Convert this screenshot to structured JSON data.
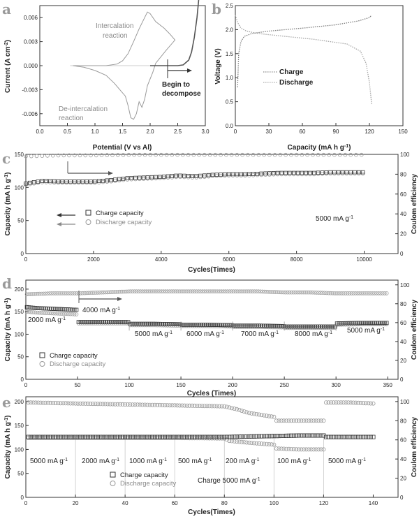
{
  "chart_data": [
    {
      "panel": "a",
      "type": "line",
      "xlabel": "Potential (V vs Al)",
      "ylabel": "Current (A cm-2)",
      "xlim": [
        0.0,
        3.0
      ],
      "ylim": [
        -0.0075,
        0.0075
      ],
      "xticks": [
        "0.0",
        "0.5",
        "1.0",
        "1.5",
        "2.0",
        "2.5",
        "3.0"
      ],
      "xtick_values": [
        0.0,
        0.5,
        1.0,
        1.5,
        2.0,
        2.5,
        3.0
      ],
      "yticks": [
        "0.006",
        "0.003",
        "0.000",
        "-0.003",
        "-0.006"
      ],
      "ytick_values": [
        0.006,
        0.003,
        0.0,
        -0.003,
        -0.006
      ],
      "annotations": [
        "Intercalation",
        "reaction",
        "De-intercalation",
        "reaction",
        "Begin to",
        "decompose"
      ],
      "series": [
        {
          "color": "#9a9a9a",
          "x": [
            0.6,
            0.9,
            1.2,
            1.4,
            1.5,
            1.6,
            1.7,
            1.8,
            1.9,
            1.95,
            2.0,
            2.1,
            2.25,
            2.35,
            2.45,
            2.3,
            2.1,
            2.05,
            1.95,
            1.9,
            1.85,
            1.8,
            1.75,
            1.7,
            1.65,
            1.6,
            1.55,
            1.45,
            1.35,
            1.2,
            1.0,
            0.8,
            0.6
          ],
          "y": [
            0.0,
            0.0,
            0.0,
            0.0002,
            0.0006,
            0.0015,
            0.003,
            0.0046,
            0.006,
            0.0067,
            0.0065,
            0.0055,
            0.0047,
            0.004,
            0.0032,
            0.002,
            0.0003,
            -0.0008,
            -0.0025,
            -0.0042,
            -0.0052,
            -0.0045,
            -0.006,
            -0.0067,
            -0.0065,
            -0.005,
            -0.0038,
            -0.003,
            -0.0022,
            -0.0012,
            -0.0006,
            -0.0002,
            0.0
          ]
        },
        {
          "color": "#555555",
          "x": [
            2.0,
            2.3,
            2.5,
            2.6,
            2.7,
            2.75,
            2.8,
            2.85,
            2.88
          ],
          "y": [
            0.0,
            0.0,
            0.0,
            0.0001,
            0.0007,
            0.0017,
            0.0035,
            0.006,
            0.0082
          ]
        }
      ]
    },
    {
      "panel": "b",
      "type": "line",
      "xlabel": "Capacity (mA h g-1)",
      "ylabel": "Voltage (V)",
      "xlim": [
        0,
        150
      ],
      "ylim": [
        0.0,
        2.5
      ],
      "xticks": [
        "0",
        "30",
        "60",
        "90",
        "120",
        "150"
      ],
      "xtick_values": [
        0,
        30,
        60,
        90,
        120,
        150
      ],
      "yticks": [
        "0.0",
        "0.5",
        "1.0",
        "1.5",
        "2.0",
        "2.5"
      ],
      "ytick_values": [
        0.0,
        0.5,
        1.0,
        1.5,
        2.0,
        2.5
      ],
      "legend": [
        "Charge",
        "Discharge"
      ],
      "series": [
        {
          "name": "Charge",
          "x": [
            2,
            3,
            5,
            8,
            15,
            30,
            60,
            90,
            110,
            120,
            122
          ],
          "y": [
            0.8,
            1.5,
            1.75,
            1.86,
            1.92,
            1.97,
            2.03,
            2.1,
            2.18,
            2.25,
            2.3
          ]
        },
        {
          "name": "Discharge",
          "x": [
            0,
            2,
            5,
            10,
            20,
            40,
            70,
            100,
            112,
            117,
            120,
            122
          ],
          "y": [
            2.3,
            2.15,
            2.03,
            1.97,
            1.92,
            1.87,
            1.8,
            1.7,
            1.55,
            1.3,
            0.9,
            0.45
          ]
        }
      ]
    },
    {
      "panel": "c",
      "type": "scatter",
      "xlabel": "Cycles(Times)",
      "ylabel": "Capacity (mA h g-1)",
      "y2label": "Coulom efficiency",
      "xlim": [
        0,
        11000
      ],
      "ylim": [
        0,
        150
      ],
      "y2lim": [
        0,
        100
      ],
      "xticks": [
        "0",
        "2000",
        "4000",
        "6000",
        "8000",
        "10000"
      ],
      "xtick_values": [
        0,
        2000,
        4000,
        6000,
        8000,
        10000
      ],
      "yticks": [
        "0",
        "50",
        "100",
        "150"
      ],
      "ytick_values": [
        0,
        50,
        100,
        150
      ],
      "y2ticks": [
        "0",
        "20",
        "40",
        "60",
        "80",
        "100"
      ],
      "y2tick_values": [
        0,
        20,
        40,
        60,
        80,
        100
      ],
      "legend": [
        "Charge capacity",
        "Discharge capacity"
      ],
      "annotations": [
        "5000 mA g-1"
      ],
      "series": [
        {
          "name": "Charge capacity",
          "x": [
            0,
            500,
            1000,
            1500,
            2000,
            2500,
            3000,
            3500,
            4000,
            4500,
            5000,
            5500,
            6000,
            6500,
            7000,
            7500,
            8000,
            8500,
            9000,
            9500,
            10000
          ],
          "y": [
            106,
            110,
            109,
            109,
            109,
            111,
            114,
            115,
            116,
            118,
            117,
            119,
            120,
            120,
            121,
            122,
            122,
            122,
            123,
            123,
            123
          ]
        },
        {
          "name": "Discharge capacity",
          "x": [
            0,
            500,
            1000,
            1500,
            2000,
            2500,
            3000,
            3500,
            4000,
            4500,
            5000,
            5500,
            6000,
            6500,
            7000,
            7500,
            8000,
            8500,
            9000,
            9500,
            10000
          ],
          "y": [
            104,
            108,
            107,
            107,
            107,
            109,
            112,
            113,
            114,
            116,
            115,
            117,
            118,
            118,
            119,
            120,
            120,
            120,
            121,
            121,
            121
          ]
        },
        {
          "name": "Coulom efficiency",
          "x": [
            0,
            1000,
            2000,
            3000,
            4000,
            5000,
            6000,
            7000,
            8000,
            9000,
            10000
          ],
          "y2": [
            98,
            99,
            99,
            99.5,
            99.5,
            99.5,
            99.5,
            99.5,
            99.5,
            99.5,
            99.5
          ]
        }
      ]
    },
    {
      "panel": "d",
      "type": "scatter",
      "xlabel": "Cycles (Times)",
      "ylabel": "Capacity (mA h g-1)",
      "y2label": "Coulom efficiency",
      "xlim": [
        0,
        360
      ],
      "ylim": [
        0,
        220
      ],
      "y2lim": [
        0,
        105
      ],
      "xticks": [
        "0",
        "50",
        "100",
        "150",
        "200",
        "250",
        "300",
        "350"
      ],
      "xtick_values": [
        0,
        50,
        100,
        150,
        200,
        250,
        300,
        350
      ],
      "yticks": [
        "0",
        "50",
        "100",
        "150",
        "200"
      ],
      "ytick_values": [
        0,
        50,
        100,
        150,
        200
      ],
      "y2ticks": [
        "0",
        "20",
        "40",
        "60",
        "80",
        "100"
      ],
      "y2tick_values": [
        0,
        20,
        40,
        60,
        80,
        100
      ],
      "legend": [
        "Charge capacity",
        "Discharge capacity"
      ],
      "annotations": [
        "2000 mA g-1",
        "4000 mA g-1",
        "5000 mA g-1",
        "6000 mA g-1",
        "7000 mA g-1",
        "8000 mA g-1",
        "5000 mA g-1"
      ],
      "series": [
        {
          "name": "Charge capacity",
          "x": [
            1,
            10,
            20,
            30,
            40,
            50,
            51,
            60,
            75,
            100,
            101,
            125,
            150,
            151,
            175,
            200,
            201,
            225,
            250,
            251,
            275,
            300,
            301,
            325,
            350
          ],
          "y": [
            160,
            158,
            157,
            156,
            155,
            154,
            127,
            127,
            127,
            127,
            123,
            123,
            122,
            121,
            121,
            120,
            119,
            119,
            118,
            117,
            117,
            117,
            124,
            125,
            125
          ]
        },
        {
          "name": "Discharge capacity",
          "x": [
            1,
            10,
            20,
            30,
            40,
            50,
            51,
            60,
            75,
            100,
            101,
            125,
            150,
            151,
            175,
            200,
            201,
            225,
            250,
            251,
            275,
            300,
            301,
            325,
            350
          ],
          "y": [
            150,
            148,
            147,
            146,
            145,
            144,
            124,
            124,
            124,
            124,
            120,
            120,
            119,
            118,
            118,
            117,
            116,
            116,
            115,
            114,
            114,
            114,
            121,
            122,
            122
          ]
        },
        {
          "name": "Coulom efficiency",
          "x": [
            1,
            25,
            50,
            75,
            100,
            125,
            150,
            175,
            200,
            225,
            250,
            275,
            300,
            325,
            350
          ],
          "y2": [
            90,
            91,
            91,
            92,
            93,
            93,
            93,
            93,
            93,
            93,
            92,
            92,
            91,
            91,
            91
          ]
        }
      ]
    },
    {
      "panel": "e",
      "type": "scatter",
      "xlabel": "Cycles(Times)",
      "ylabel": "Capacity (mA h g-1)",
      "y2label": "Coulom efficiency",
      "xlim": [
        0,
        150
      ],
      "ylim": [
        0,
        210
      ],
      "y2lim": [
        0,
        105
      ],
      "xticks": [
        "0",
        "20",
        "40",
        "60",
        "80",
        "100",
        "120",
        "140"
      ],
      "xtick_values": [
        0,
        20,
        40,
        60,
        80,
        100,
        120,
        140
      ],
      "yticks": [
        "0",
        "50",
        "100",
        "150",
        "200"
      ],
      "ytick_values": [
        0,
        50,
        100,
        150,
        200
      ],
      "y2ticks": [
        "0",
        "20",
        "40",
        "60",
        "80",
        "100"
      ],
      "y2tick_values": [
        0,
        20,
        40,
        60,
        80,
        100
      ],
      "legend": [
        "Charge capacity",
        "Discharge capacity"
      ],
      "annotations": [
        "5000 mA g-1",
        "2000 mA g-1",
        "1000 mA g-1",
        "500 mA g-1",
        "200 mA g-1",
        "100 mA g-1",
        "5000 mA g-1",
        "Charge 5000 mA g-1"
      ],
      "separators": [
        20,
        40,
        60,
        80,
        100,
        120
      ],
      "series": [
        {
          "name": "Charge capacity",
          "x": [
            1,
            20,
            40,
            60,
            80,
            90,
            100,
            110,
            120,
            121,
            130,
            140
          ],
          "y": [
            126,
            126,
            126,
            126,
            126,
            127,
            128,
            129,
            129,
            126,
            126,
            126
          ]
        },
        {
          "name": "Discharge capacity",
          "x": [
            1,
            20,
            40,
            60,
            80,
            82,
            90,
            100,
            101,
            110,
            120
          ],
          "y": [
            124,
            124,
            124,
            124,
            123,
            118,
            114,
            110,
            102,
            100,
            100
          ]
        },
        {
          "name": "Coulom efficiency",
          "x": [
            1,
            20,
            40,
            60,
            80,
            85,
            90,
            95,
            100,
            101,
            110,
            120,
            121,
            130,
            140
          ],
          "y2": [
            99,
            98,
            97,
            96,
            95,
            92,
            88,
            86,
            84,
            80,
            80,
            80,
            99,
            99,
            98
          ]
        }
      ]
    }
  ],
  "labels": {
    "panel_a": "a",
    "panel_b": "b",
    "panel_c": "c",
    "panel_d": "d",
    "panel_e": "e",
    "a_xlabel": "Potential (V vs Al)",
    "a_ylabel": "Current (A cm",
    "a_ylabel_sup": "-2",
    "a_ylabel_end": ")",
    "a_int1": "Intercalation",
    "a_int2": "reaction",
    "a_deint1": "De-intercalation",
    "a_deint2": "reaction",
    "a_dec1": "Begin to",
    "a_dec2": "decompose",
    "b_xlabel": "Capacity (mA h g",
    "b_xlabel_sup": "-1",
    "b_xlabel_end": ")",
    "b_ylabel": "Voltage (V)",
    "b_leg_charge": "Charge",
    "b_leg_discharge": "Discharge",
    "cap_ylabel": "Capacity (mA h g",
    "cap_ylabel_sup": "-1",
    "cap_ylabel_end": ")",
    "ce_label": "Coulom efficiency",
    "c_xlabel": "Cycles(Times)",
    "d_xlabel": "Cycles (Times)",
    "e_xlabel": "Cycles(Times)",
    "leg_charge": "Charge capacity",
    "leg_discharge": "Discharge capacity",
    "c_rate": "5000 mA g",
    "rate_sup": "-1",
    "d_r1": "2000 mA g",
    "d_r2": "4000 mA g",
    "d_r3": "5000 mA g",
    "d_r4": "6000 mA g",
    "d_r5": "7000 mA g",
    "d_r6": "8000 mA g",
    "d_r7": "5000 mA g",
    "e_r1": "5000 mA g",
    "e_r2": "2000 mA g",
    "e_r3": "1000 mA g",
    "e_r4": "500 mA g",
    "e_r5": "200 mA g",
    "e_r6": "100 mA g",
    "e_r7": "5000 mA g",
    "e_charge": "Charge 5000 mA g"
  },
  "colors": {
    "axis": "#333333",
    "charge_marker": "#333333",
    "discharge_marker": "#9a9a9a",
    "cv_main": "#9a9a9a",
    "cv_decompose": "#555555",
    "arrow_dark": "#333333",
    "arrow_gray": "#8a8a8a",
    "panel_letter": "#9a9a9a"
  }
}
